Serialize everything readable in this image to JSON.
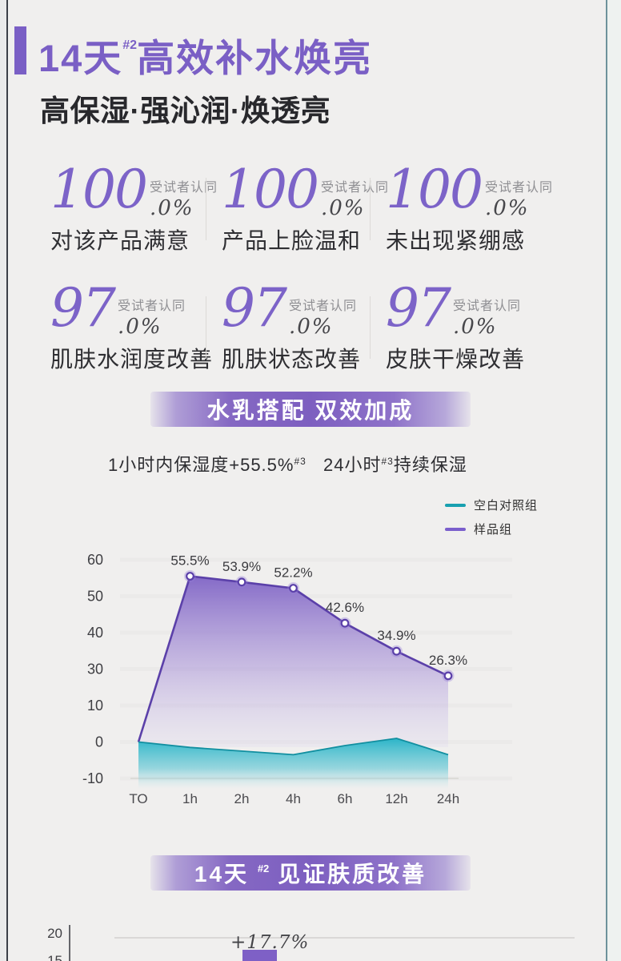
{
  "colors": {
    "background": "#f0efee",
    "accent_purple": "#7a5fc5",
    "number_purple": "#7c63c8",
    "line_purple": "#5b40a9",
    "area_purple_top": "#7b5fc4",
    "teal": "#18a0b0",
    "bar_purple": "#7e60c6"
  },
  "header": {
    "title_prefix": "14天",
    "title_sup": "#2",
    "title_rest": "高效补水焕亮",
    "subtitle": "高保湿·强沁润·焕透亮"
  },
  "stats": [
    {
      "value": "100",
      "decimal": ".0%",
      "tag": "受试者认同",
      "caption": "对该产品满意"
    },
    {
      "value": "100",
      "decimal": ".0%",
      "tag": "受试者认同",
      "caption": "产品上脸温和"
    },
    {
      "value": "100",
      "decimal": ".0%",
      "tag": "受试者认同",
      "caption": "未出现紧绷感"
    },
    {
      "value": "97",
      "decimal": ".0%",
      "tag": "受试者认同",
      "caption": "肌肤水润度改善"
    },
    {
      "value": "97",
      "decimal": ".0%",
      "tag": "受试者认同",
      "caption": "肌肤状态改善"
    },
    {
      "value": "97",
      "decimal": ".0%",
      "tag": "受试者认同",
      "caption": "皮肤干燥改善"
    }
  ],
  "banner_combo": {
    "label": "水乳搭配 双效加成"
  },
  "moisture_headlines": {
    "left_text": "1小时内保湿度+55.5%",
    "left_sup": "#3",
    "right_prefix": "24小时",
    "right_sup": "#3",
    "right_suffix": "持续保湿"
  },
  "legend": [
    {
      "label": "空白对照组",
      "color": "#18a0b0"
    },
    {
      "label": "样品组",
      "color": "#7a5ecc"
    }
  ],
  "chart_data": [
    {
      "type": "area",
      "x_categories": [
        "TO",
        "1h",
        "2h",
        "4h",
        "6h",
        "12h",
        "24h"
      ],
      "ytick_labels": [
        "60",
        "50",
        "40",
        "30",
        "10",
        "0",
        "-10"
      ],
      "grid": false,
      "legend_position": "top-right",
      "series": [
        {
          "name": "样品组",
          "color": "#5b40a9",
          "values": [
            0,
            55.5,
            53.9,
            52.2,
            42.6,
            34.9,
            26.3
          ],
          "point_labels": [
            "",
            "55.5%",
            "53.9%",
            "52.2%",
            "42.6%",
            "34.9%",
            "26.3%"
          ]
        },
        {
          "name": "空白对照组",
          "color": "#18a0b0",
          "values": [
            0,
            -1.5,
            -2.5,
            -3.5,
            -1,
            1,
            -3.5
          ],
          "point_labels": [
            "",
            "",
            "",
            "",
            "",
            "",
            ""
          ]
        }
      ]
    },
    {
      "type": "bar",
      "ytick_labels": [
        "20",
        "15"
      ],
      "bars": [
        {
          "label": "+17.7%",
          "value": 17.7,
          "color": "#7e60c6"
        }
      ],
      "layout_hint": "cropped-at-page-bottom"
    }
  ],
  "banner_improve": {
    "prefix": "14天",
    "sup": "#2",
    "rest": "见证肤质改善"
  }
}
